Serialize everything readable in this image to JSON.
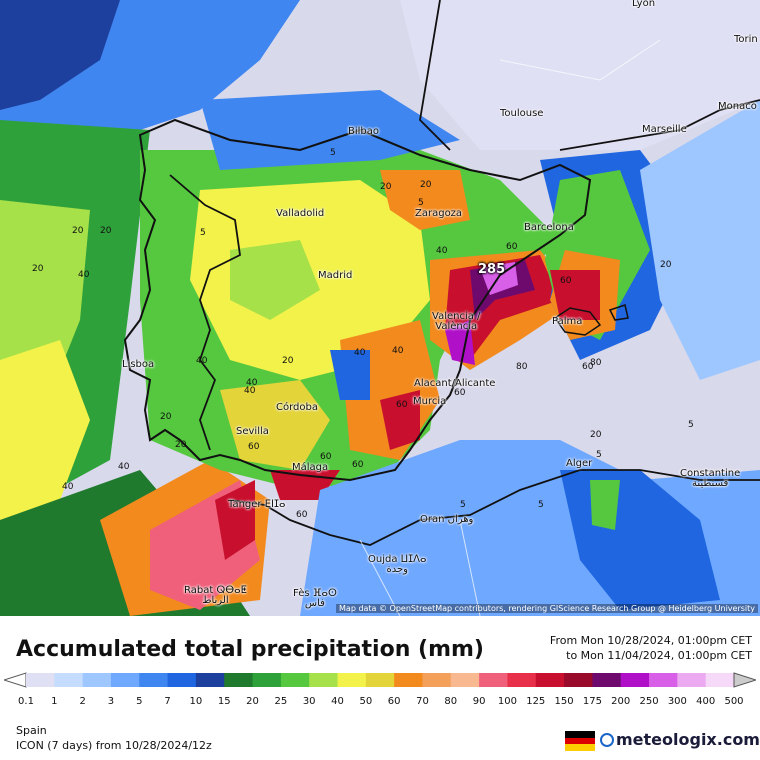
{
  "map": {
    "peak_label": "285",
    "attribution": "Map data © OpenStreetMap contributors, rendering GIScience Research Group @ Heidelberg University",
    "cities": [
      {
        "name": "Lyon"
      },
      {
        "name": "Torin"
      },
      {
        "name": "Monaco"
      },
      {
        "name": "Toulouse"
      },
      {
        "name": "Marseille"
      },
      {
        "name": "Bilbao"
      },
      {
        "name": "Zaragoza"
      },
      {
        "name": "Barcelona"
      },
      {
        "name": "Valladolid"
      },
      {
        "name": "Madrid"
      },
      {
        "name": "Valencia /\nValència"
      },
      {
        "name": "Palma"
      },
      {
        "name": "Lisboa"
      },
      {
        "name": "Alacant/Alicante"
      },
      {
        "name": "Murcia"
      },
      {
        "name": "Córdoba"
      },
      {
        "name": "Sevilla"
      },
      {
        "name": "Málaga"
      },
      {
        "name": "Tanger ⴹⵏⵊⴰ"
      },
      {
        "name": "Alger"
      },
      {
        "name": "Constantine\nقسنطينة"
      },
      {
        "name": "Oran وهران"
      },
      {
        "name": "Oujda ⵡⵊⴷⴰ\nوجدة"
      },
      {
        "name": "Rabat ⵕⴱⴰⵟ\nالرباط"
      },
      {
        "name": "Fès ⴼⴰⵙ\nفاس"
      }
    ],
    "contour_labels": [
      "5",
      "5",
      "5",
      "5",
      "5",
      "5",
      "5",
      "20",
      "20",
      "20",
      "20",
      "20",
      "20",
      "20",
      "20",
      "20",
      "20",
      "40",
      "40",
      "40",
      "40",
      "40",
      "40",
      "40",
      "40",
      "40",
      "60",
      "60",
      "60",
      "60",
      "60",
      "60",
      "60",
      "60",
      "60",
      "80",
      "80"
    ]
  },
  "legend": {
    "title": "Accumulated total precipitation (mm)",
    "from": "From Mon 10/28/2024, 01:00pm CET",
    "to": "to Mon 11/04/2024, 01:00pm CET",
    "ticks": [
      "0.1",
      "1",
      "2",
      "3",
      "5",
      "7",
      "10",
      "15",
      "20",
      "25",
      "30",
      "40",
      "50",
      "60",
      "70",
      "80",
      "90",
      "100",
      "125",
      "150",
      "175",
      "200",
      "250",
      "300",
      "400",
      "500"
    ],
    "colors": [
      "#e0e0f5",
      "#c6dcff",
      "#9ec6ff",
      "#6fa8ff",
      "#3f86f0",
      "#1f66e0",
      "#1d3f9e",
      "#1f7a2e",
      "#2fa13a",
      "#55c840",
      "#a6e14a",
      "#f2f24a",
      "#e3d43a",
      "#f28a1e",
      "#f5a05a",
      "#f8b890",
      "#f0607a",
      "#e8304a",
      "#c8102e",
      "#9a0a2a",
      "#6e0a6e",
      "#b010c8",
      "#d860e8",
      "#ecaaf0",
      "#f6d8f8",
      "#cccccc"
    ]
  },
  "footer": {
    "region": "Spain",
    "model": "ICON (7 days)  from  10/28/2024/12z",
    "brand": "meteologix.com"
  }
}
